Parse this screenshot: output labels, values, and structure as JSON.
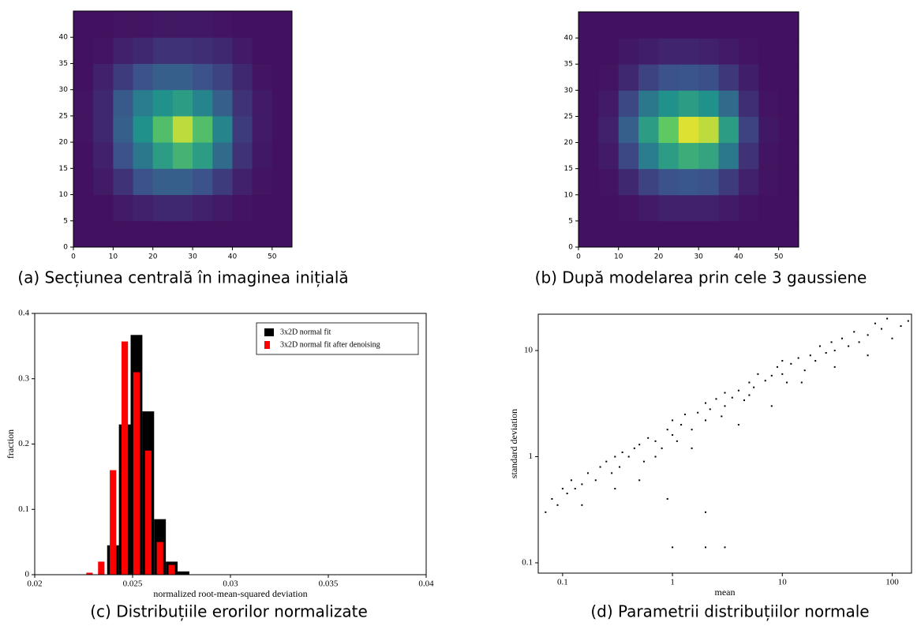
{
  "chart_data": [
    {
      "type": "heatmap",
      "caption": "(a) Secțiunea centrală în imaginea inițială",
      "colormap": "viridis",
      "x": [
        2.5,
        7.5,
        12.5,
        17.5,
        22.5,
        27.5,
        32.5,
        37.5,
        42.5,
        47.5,
        52.5
      ],
      "y": [
        2.5,
        7.5,
        12.5,
        17.5,
        22.5,
        27.5,
        32.5,
        37.5,
        42.5
      ],
      "z": [
        [
          0.05,
          0.05,
          0.05,
          0.05,
          0.05,
          0.05,
          0.05,
          0.05,
          0.05,
          0.05,
          0.05
        ],
        [
          0.05,
          0.05,
          0.08,
          0.1,
          0.12,
          0.12,
          0.1,
          0.08,
          0.06,
          0.05,
          0.05
        ],
        [
          0.05,
          0.08,
          0.15,
          0.25,
          0.3,
          0.3,
          0.25,
          0.18,
          0.1,
          0.06,
          0.05
        ],
        [
          0.05,
          0.1,
          0.25,
          0.4,
          0.55,
          0.65,
          0.55,
          0.35,
          0.15,
          0.07,
          0.05
        ],
        [
          0.06,
          0.12,
          0.3,
          0.5,
          0.7,
          0.9,
          0.7,
          0.45,
          0.18,
          0.08,
          0.05
        ],
        [
          0.06,
          0.12,
          0.28,
          0.42,
          0.5,
          0.55,
          0.45,
          0.3,
          0.15,
          0.08,
          0.05
        ],
        [
          0.05,
          0.1,
          0.18,
          0.25,
          0.3,
          0.3,
          0.25,
          0.2,
          0.12,
          0.06,
          0.05
        ],
        [
          0.05,
          0.06,
          0.1,
          0.12,
          0.15,
          0.15,
          0.14,
          0.12,
          0.08,
          0.05,
          0.05
        ],
        [
          0.05,
          0.05,
          0.06,
          0.06,
          0.07,
          0.07,
          0.07,
          0.06,
          0.05,
          0.05,
          0.05
        ]
      ],
      "xlim": [
        0,
        55
      ],
      "ylim": [
        0,
        45
      ],
      "xticks": [
        0,
        10,
        20,
        30,
        40,
        50
      ],
      "yticks": [
        0,
        5,
        10,
        15,
        20,
        25,
        30,
        35,
        40
      ]
    },
    {
      "type": "heatmap",
      "caption": "(b) După modelarea prin cele 3 gaussiene",
      "colormap": "viridis",
      "x": [
        2.5,
        7.5,
        12.5,
        17.5,
        22.5,
        27.5,
        32.5,
        37.5,
        42.5,
        47.5,
        52.5
      ],
      "y": [
        2.5,
        7.5,
        12.5,
        17.5,
        22.5,
        27.5,
        32.5,
        37.5,
        42.5
      ],
      "z": [
        [
          0.05,
          0.05,
          0.05,
          0.05,
          0.05,
          0.05,
          0.05,
          0.05,
          0.05,
          0.05,
          0.05
        ],
        [
          0.05,
          0.05,
          0.06,
          0.08,
          0.1,
          0.1,
          0.1,
          0.08,
          0.06,
          0.05,
          0.05
        ],
        [
          0.05,
          0.06,
          0.12,
          0.2,
          0.25,
          0.27,
          0.25,
          0.18,
          0.1,
          0.06,
          0.05
        ],
        [
          0.05,
          0.08,
          0.22,
          0.42,
          0.55,
          0.62,
          0.58,
          0.4,
          0.15,
          0.06,
          0.05
        ],
        [
          0.05,
          0.1,
          0.3,
          0.55,
          0.75,
          0.95,
          0.9,
          0.55,
          0.2,
          0.07,
          0.05
        ],
        [
          0.05,
          0.08,
          0.22,
          0.4,
          0.5,
          0.55,
          0.5,
          0.35,
          0.14,
          0.06,
          0.05
        ],
        [
          0.05,
          0.06,
          0.12,
          0.2,
          0.25,
          0.26,
          0.24,
          0.17,
          0.09,
          0.05,
          0.05
        ],
        [
          0.05,
          0.05,
          0.07,
          0.09,
          0.11,
          0.11,
          0.1,
          0.08,
          0.06,
          0.05,
          0.05
        ],
        [
          0.05,
          0.05,
          0.05,
          0.05,
          0.05,
          0.05,
          0.05,
          0.05,
          0.05,
          0.05,
          0.05
        ]
      ],
      "xlim": [
        0,
        55
      ],
      "ylim": [
        0,
        45
      ],
      "xticks": [
        0,
        10,
        20,
        30,
        40,
        50
      ],
      "yticks": [
        0,
        5,
        10,
        15,
        20,
        25,
        30,
        35,
        40
      ]
    },
    {
      "type": "histogram",
      "caption": "(c) Distribuțiile erorilor normalizate",
      "xlabel": "normalized root-mean-squared deviation",
      "ylabel": "fraction",
      "series": [
        {
          "name": "3x2D normal fit",
          "color": "#000000",
          "bins": [
            0.0237,
            0.0243,
            0.0249,
            0.0255,
            0.0261,
            0.0267,
            0.0273,
            0.0279
          ],
          "values": [
            0.045,
            0.23,
            0.367,
            0.25,
            0.085,
            0.02,
            0.005
          ]
        },
        {
          "name": "3x2D normal fit after denoising",
          "color": "#ff0000",
          "bins": [
            0.0225,
            0.0231,
            0.0237,
            0.0243,
            0.0249,
            0.0255,
            0.0261,
            0.0267,
            0.0273
          ],
          "values": [
            0.003,
            0.02,
            0.16,
            0.357,
            0.31,
            0.19,
            0.05,
            0.015
          ]
        }
      ],
      "xlim": [
        0.02,
        0.04
      ],
      "ylim": [
        0,
        0.4
      ],
      "xticks": [
        0.02,
        0.025,
        0.03,
        0.035,
        0.04
      ],
      "yticks": [
        0,
        0.1,
        0.2,
        0.3,
        0.4
      ],
      "legend": "upper right"
    },
    {
      "type": "scatter",
      "caption": "(d) Parametrii distribuțiilor normale",
      "xlabel": "mean",
      "ylabel": "standard deviation",
      "color": "#000000",
      "x": [
        0.07,
        0.08,
        0.09,
        0.1,
        0.11,
        0.12,
        0.13,
        0.15,
        0.17,
        0.2,
        0.22,
        0.25,
        0.28,
        0.3,
        0.33,
        0.35,
        0.4,
        0.45,
        0.5,
        0.55,
        0.6,
        0.7,
        0.8,
        0.9,
        1,
        1,
        1.1,
        1.2,
        1.3,
        1.5,
        1.7,
        2,
        2,
        2.2,
        2.5,
        2.8,
        3,
        3,
        3.5,
        4,
        4.5,
        5,
        5,
        5.5,
        6,
        7,
        8,
        9,
        10,
        10,
        11,
        12,
        14,
        16,
        18,
        20,
        22,
        25,
        28,
        30,
        35,
        40,
        45,
        50,
        60,
        70,
        80,
        90,
        100,
        120,
        140,
        1,
        2,
        3,
        0.9,
        2,
        0.5,
        0.3,
        0.15,
        4,
        8,
        15,
        30,
        60,
        0.7,
        1.5
      ],
      "y": [
        0.3,
        0.4,
        0.35,
        0.5,
        0.45,
        0.6,
        0.5,
        0.55,
        0.7,
        0.6,
        0.8,
        0.9,
        0.7,
        1,
        0.8,
        1.1,
        1,
        1.2,
        1.3,
        0.9,
        1.5,
        1.4,
        1.2,
        1.8,
        1.6,
        2.2,
        1.4,
        2,
        2.5,
        1.8,
        2.6,
        2.2,
        3.2,
        2.8,
        3.5,
        2.4,
        3,
        4,
        3.6,
        4.2,
        3.4,
        5,
        3.8,
        4.5,
        6,
        5.2,
        5.8,
        7,
        6,
        8,
        5,
        7.5,
        8.5,
        6.5,
        9,
        8,
        11,
        9.5,
        12,
        10,
        13,
        11,
        15,
        12,
        14,
        18,
        16,
        20,
        13,
        17,
        19,
        0.14,
        0.14,
        0.14,
        0.4,
        0.3,
        0.6,
        0.5,
        0.35,
        2,
        3,
        5,
        7,
        9,
        1,
        1.2
      ],
      "xscale": "log",
      "yscale": "log",
      "xlim": [
        0.06,
        150
      ],
      "ylim": [
        0.08,
        22
      ],
      "xticks": [
        0.1,
        1,
        10,
        100
      ],
      "yticks": [
        0.1,
        1,
        10
      ]
    }
  ]
}
